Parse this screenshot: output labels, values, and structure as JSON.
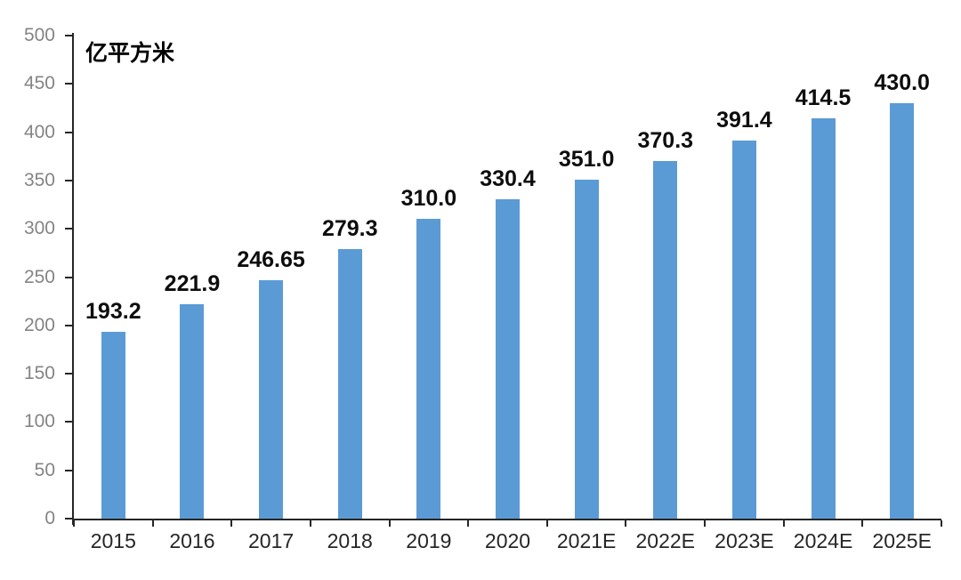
{
  "chart_data": {
    "type": "bar",
    "unit_label": "亿平方米",
    "categories": [
      "2015",
      "2016",
      "2017",
      "2018",
      "2019",
      "2020",
      "2021E",
      "2022E",
      "2023E",
      "2024E",
      "2025E"
    ],
    "values": [
      193.2,
      221.9,
      246.65,
      279.3,
      310.0,
      330.4,
      351.0,
      370.3,
      391.4,
      414.5,
      430.0
    ],
    "value_labels": [
      "193.2",
      "221.9",
      "246.65",
      "279.3",
      "310.0",
      "330.4",
      "351.0",
      "370.3",
      "391.4",
      "414.5",
      "430.0"
    ],
    "ylim": [
      0,
      500
    ],
    "ytick_interval": 50,
    "ytick_labels": [
      "0",
      "50",
      "100",
      "150",
      "200",
      "250",
      "300",
      "350",
      "400",
      "450",
      "500"
    ],
    "bar_color": "#5B9BD5",
    "axis_color": "#262626",
    "ytick_label_color": "#848484",
    "xtick_label_color": "#262626",
    "value_label_color": "#0d0d0d",
    "grid": false,
    "legend": "none"
  }
}
